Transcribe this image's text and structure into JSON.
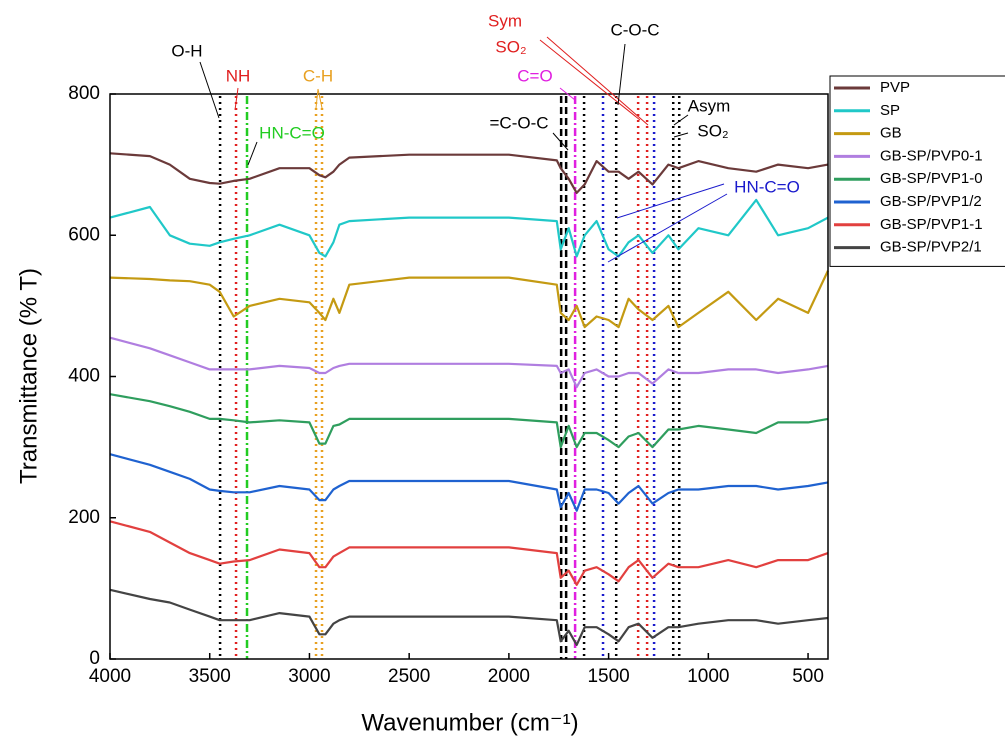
{
  "chart_data": {
    "type": "line",
    "xlabel": "Wavenumber (cm⁻¹)",
    "ylabel": "Transmittance (% T)",
    "xlim": [
      4000,
      400
    ],
    "ylim": [
      0,
      800
    ],
    "xticks": [
      4000,
      3500,
      3000,
      2500,
      2000,
      1500,
      1000,
      500
    ],
    "yticks": [
      0,
      200,
      400,
      600,
      800
    ],
    "legend": "right",
    "x": [
      4000,
      3800,
      3700,
      3600,
      3500,
      3450,
      3380,
      3300,
      3150,
      3000,
      2950,
      2920,
      2880,
      2850,
      2800,
      2500,
      2000,
      1760,
      1740,
      1700,
      1660,
      1620,
      1560,
      1500,
      1450,
      1400,
      1350,
      1280,
      1200,
      1150,
      1050,
      900,
      760,
      650,
      500,
      400
    ],
    "series": [
      {
        "name": "PVP",
        "color": "#6b3a3a",
        "values": [
          716,
          712,
          700,
          680,
          674,
          673,
          677,
          680,
          695,
          695,
          685,
          682,
          690,
          700,
          710,
          714,
          714,
          706,
          695,
          680,
          660,
          672,
          705,
          690,
          690,
          680,
          690,
          672,
          700,
          695,
          705,
          695,
          690,
          700,
          695,
          700
        ]
      },
      {
        "name": "SP",
        "color": "#20c8c8",
        "values": [
          625,
          640,
          600,
          588,
          585,
          590,
          595,
          600,
          615,
          600,
          575,
          570,
          590,
          615,
          620,
          625,
          625,
          620,
          580,
          610,
          570,
          600,
          620,
          580,
          570,
          590,
          600,
          575,
          600,
          580,
          610,
          600,
          650,
          600,
          610,
          625
        ]
      },
      {
        "name": "GB",
        "color": "#c49a12",
        "values": [
          540,
          538,
          536,
          535,
          530,
          520,
          485,
          500,
          510,
          505,
          490,
          480,
          510,
          490,
          530,
          540,
          540,
          530,
          490,
          480,
          500,
          470,
          485,
          480,
          470,
          510,
          495,
          480,
          500,
          470,
          490,
          520,
          480,
          510,
          490,
          550
        ]
      },
      {
        "name": "GB-SP/PVP0-1",
        "color": "#b07ee0",
        "values": [
          455,
          440,
          430,
          420,
          410,
          410,
          410,
          410,
          415,
          412,
          405,
          405,
          412,
          415,
          418,
          418,
          418,
          415,
          405,
          410,
          385,
          405,
          410,
          400,
          400,
          405,
          405,
          390,
          410,
          405,
          405,
          410,
          410,
          405,
          410,
          415
        ]
      },
      {
        "name": "GB-SP/PVP1-0",
        "color": "#2f9e5e",
        "values": [
          375,
          365,
          358,
          350,
          340,
          340,
          338,
          335,
          338,
          335,
          305,
          305,
          330,
          332,
          340,
          340,
          340,
          335,
          300,
          330,
          300,
          320,
          320,
          310,
          300,
          315,
          320,
          300,
          325,
          325,
          330,
          325,
          320,
          335,
          335,
          340
        ]
      },
      {
        "name": "GB-SP/PVP1/2",
        "color": "#1f62d0",
        "values": [
          290,
          275,
          265,
          255,
          240,
          238,
          236,
          236,
          245,
          240,
          225,
          225,
          240,
          245,
          252,
          252,
          252,
          240,
          215,
          235,
          210,
          240,
          240,
          235,
          220,
          235,
          245,
          220,
          235,
          240,
          240,
          245,
          245,
          240,
          245,
          250
        ]
      },
      {
        "name": "GB-SP/PVP1-1",
        "color": "#e2403f",
        "values": [
          195,
          180,
          165,
          150,
          140,
          135,
          138,
          140,
          155,
          150,
          130,
          130,
          145,
          150,
          158,
          158,
          158,
          150,
          115,
          125,
          105,
          125,
          130,
          120,
          110,
          130,
          140,
          115,
          135,
          130,
          130,
          140,
          130,
          140,
          140,
          150
        ]
      },
      {
        "name": "GB-SP/PVP2/1",
        "color": "#444444",
        "values": [
          98,
          85,
          80,
          70,
          60,
          55,
          55,
          55,
          65,
          60,
          35,
          35,
          50,
          55,
          60,
          60,
          60,
          55,
          25,
          40,
          20,
          45,
          45,
          35,
          25,
          45,
          50,
          30,
          45,
          45,
          50,
          55,
          55,
          50,
          55,
          58
        ]
      }
    ],
    "vlines": [
      {
        "x": 3448,
        "color": "#000000",
        "style": "dotted"
      },
      {
        "x": 3368,
        "color": "#e02020",
        "style": "dotted"
      },
      {
        "x": 3313,
        "color": "#22cc22",
        "style": "dashdot"
      },
      {
        "x": 2967,
        "color": "#e8a020",
        "style": "dotted"
      },
      {
        "x": 2937,
        "color": "#e8a020",
        "style": "dotted"
      },
      {
        "x": 1738,
        "color": "#000000",
        "style": "dashed"
      },
      {
        "x": 1713,
        "color": "#000000",
        "style": "dashed"
      },
      {
        "x": 1668,
        "color": "#e020e0",
        "style": "dashdot"
      },
      {
        "x": 1623,
        "color": "#000000",
        "style": "dotted"
      },
      {
        "x": 1528,
        "color": "#1a1acc",
        "style": "dotted"
      },
      {
        "x": 1462,
        "color": "#000000",
        "style": "dotted"
      },
      {
        "x": 1352,
        "color": "#e02020",
        "style": "dotted"
      },
      {
        "x": 1307,
        "color": "#e02020",
        "style": "dotted"
      },
      {
        "x": 1272,
        "color": "#1a1acc",
        "style": "dotted"
      },
      {
        "x": 1176,
        "color": "#000000",
        "style": "dotted"
      },
      {
        "x": 1146,
        "color": "#000000",
        "style": "dotted"
      }
    ],
    "annotations": [
      {
        "text": "O-H",
        "color": "#000000"
      },
      {
        "text": "NH",
        "color": "#e02020"
      },
      {
        "text": "C-H",
        "color": "#e8a020"
      },
      {
        "text": "HN-C=O",
        "color": "#22cc22"
      },
      {
        "text": "Sym",
        "color": "#e02020"
      },
      {
        "text": "SO₂",
        "color": "#e02020"
      },
      {
        "text": "C=O",
        "color": "#e020e0"
      },
      {
        "text": "C-O-C",
        "color": "#000000"
      },
      {
        "text": "=C-O-C",
        "color": "#000000"
      },
      {
        "text": "Asym",
        "color": "#000000"
      },
      {
        "text": "SO₂",
        "color": "#000000"
      },
      {
        "text": "HN-C=O",
        "color": "#1a1acc"
      }
    ]
  }
}
